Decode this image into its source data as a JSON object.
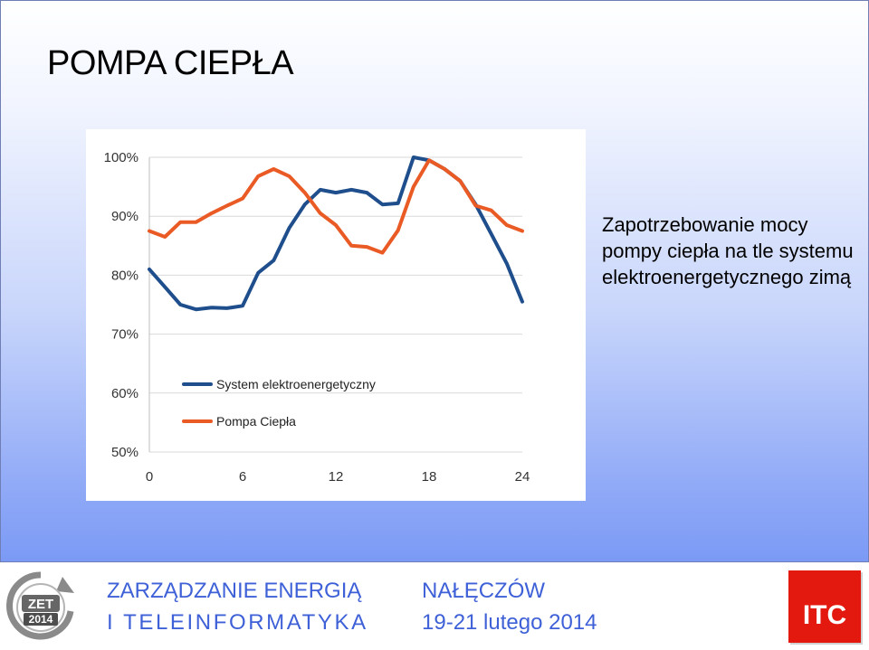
{
  "slide": {
    "title": "POMPA CIEPŁA",
    "caption_lines": [
      "Zapotrzebowanie mocy",
      "pompy ciepła na tle systemu",
      "elektroenergetycznego zimą"
    ]
  },
  "footer": {
    "left_line1": "ZARZĄDZANIE ENERGIĄ",
    "left_line2": "I TELEINFORMATYKA",
    "right_line1": "NAŁĘCZÓW",
    "right_line2": "19-21 lutego 2014",
    "logo_zet_top": "ZET",
    "logo_zet_bottom": "2014",
    "logo_itc": "ITC"
  },
  "chart_data": {
    "type": "line",
    "title": "",
    "xlabel": "",
    "ylabel": "",
    "xlim": [
      0,
      24
    ],
    "ylim": [
      0.5,
      1.0
    ],
    "x_ticks": [
      0,
      6,
      12,
      18,
      24
    ],
    "x_tick_labels": [
      "0",
      "6",
      "12",
      "18",
      "24"
    ],
    "y_ticks": [
      0.5,
      0.6,
      0.7,
      0.8,
      0.9,
      1.0
    ],
    "y_tick_labels": [
      "50%",
      "60%",
      "70%",
      "80%",
      "90%",
      "100%"
    ],
    "grid": "horizontal",
    "legend_position": "bottom-left",
    "x": [
      0,
      1,
      2,
      3,
      4,
      5,
      6,
      7,
      8,
      9,
      10,
      11,
      12,
      13,
      14,
      15,
      16,
      17,
      18,
      19,
      20,
      21,
      22,
      23,
      24
    ],
    "series": [
      {
        "name": "System elektroenergetyczny",
        "color": "#1f4e8c",
        "values": [
          0.81,
          0.78,
          0.75,
          0.742,
          0.745,
          0.744,
          0.748,
          0.804,
          0.825,
          0.88,
          0.92,
          0.945,
          0.94,
          0.945,
          0.94,
          0.92,
          0.922,
          1.0,
          0.995,
          0.98,
          0.96,
          0.92,
          0.87,
          0.82,
          0.755
        ]
      },
      {
        "name": "Pompa Ciepła",
        "color": "#ea5a24",
        "values": [
          0.875,
          0.865,
          0.89,
          0.89,
          0.905,
          0.918,
          0.93,
          0.968,
          0.98,
          0.968,
          0.94,
          0.905,
          0.885,
          0.85,
          0.848,
          0.838,
          0.876,
          0.95,
          0.995,
          0.98,
          0.96,
          0.918,
          0.91,
          0.885,
          0.875
        ]
      }
    ]
  }
}
